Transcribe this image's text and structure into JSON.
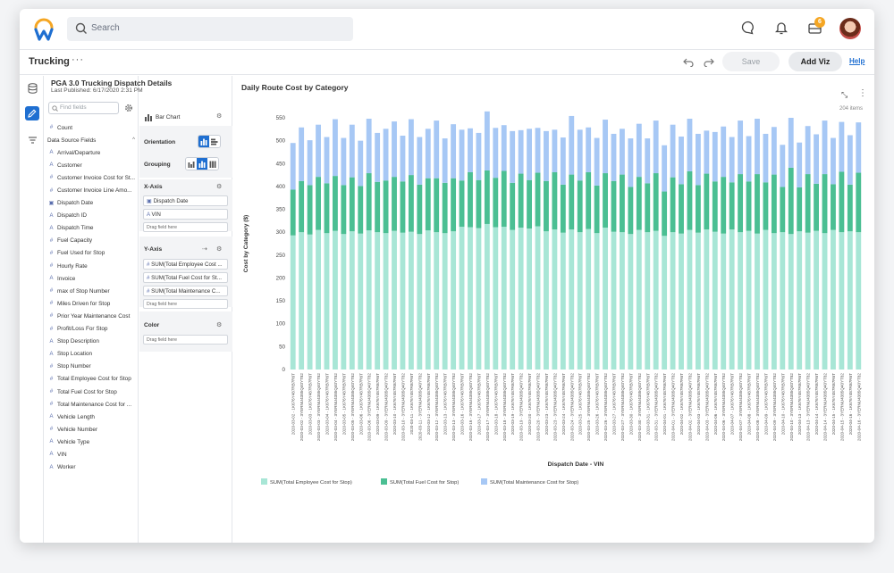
{
  "app": {
    "search_placeholder": "Search",
    "notification_count": "6"
  },
  "header": {
    "title": "Trucking",
    "more": "···",
    "save_label": "Save",
    "add_viz_label": "Add Viz",
    "help_label": "Help"
  },
  "datasource": {
    "title": "PGA 3.0 Trucking Dispatch Details",
    "last_published": "Last Published: 6/17/2020 2:31 PM",
    "find_placeholder": "Find fields",
    "count_label": "Count",
    "section_label": "Data Source Fields",
    "fields": [
      {
        "icon": "A",
        "label": "Arrival/Departure"
      },
      {
        "icon": "A",
        "label": "Customer"
      },
      {
        "icon": "#",
        "label": "Customer Invoice Cost for St..."
      },
      {
        "icon": "#",
        "label": "Customer Invoice Line Amo..."
      },
      {
        "icon": "D",
        "label": "Dispatch Date"
      },
      {
        "icon": "A",
        "label": "Dispatch ID"
      },
      {
        "icon": "A",
        "label": "Dispatch Time"
      },
      {
        "icon": "#",
        "label": "Fuel Capacity"
      },
      {
        "icon": "#",
        "label": "Fuel Used for Stop"
      },
      {
        "icon": "#",
        "label": "Hourly Rate"
      },
      {
        "icon": "A",
        "label": "Invoice"
      },
      {
        "icon": "#",
        "label": "max of Stop Number"
      },
      {
        "icon": "#",
        "label": "Miles Driven for Stop"
      },
      {
        "icon": "#",
        "label": "Prior Year Maintenance Cost"
      },
      {
        "icon": "#",
        "label": "Profit/Loss For Stop"
      },
      {
        "icon": "A",
        "label": "Stop Description"
      },
      {
        "icon": "A",
        "label": "Stop Location"
      },
      {
        "icon": "#",
        "label": "Stop Number"
      },
      {
        "icon": "#",
        "label": "Total Employee Cost for Stop"
      },
      {
        "icon": "#",
        "label": "Total Fuel Cost for Stop"
      },
      {
        "icon": "#",
        "label": "Total Maintenance Cost for ..."
      },
      {
        "icon": "A",
        "label": "Vehicle Length"
      },
      {
        "icon": "#",
        "label": "Vehicle Number"
      },
      {
        "icon": "A",
        "label": "Vehicle Type"
      },
      {
        "icon": "A",
        "label": "VIN"
      },
      {
        "icon": "A",
        "label": "Worker"
      }
    ]
  },
  "config": {
    "chart_type": "Bar Chart",
    "orientation_label": "Orientation",
    "grouping_label": "Grouping",
    "xaxis_label": "X-Axis",
    "x_fields": [
      "Dispatch Date",
      "VIN"
    ],
    "drag_here": "Drag field here",
    "yaxis_label": "Y-Axis",
    "y_fields": [
      "SUM(Total Employee Cost ...",
      "SUM(Total Fuel Cost for St...",
      "SUM(Total Maintenance C..."
    ],
    "color_label": "Color"
  },
  "chart_data": {
    "type": "bar",
    "title": "Daily Route Cost by Category",
    "count_label": "204 items",
    "xlabel": "Dispatch Date - VIN",
    "ylabel": "Cost by Category ($)",
    "ylim": [
      0,
      550
    ],
    "yticks": [
      0,
      50,
      100,
      150,
      200,
      250,
      300,
      350,
      400,
      450,
      500,
      550
    ],
    "stacked": true,
    "grid": false,
    "legend_position": "bottom-left",
    "colors": [
      "#a8e6d6",
      "#4bbf93",
      "#a7c8f5"
    ],
    "categories": [
      "2020-03-02 - 1K676Y487RB7R6T",
      "2020-03-02 - 3YERNU4385Q40YT82",
      "2020-03-03 - 1K676Y487RB7R6T",
      "2020-03-03 - 3YERNU4385Q40YT82",
      "2020-03-04 - 1K676Y487RB7R6T",
      "2020-03-04 - 3YERNU4385Q40YT82",
      "2020-03-05 - 1K676Y487RB7R6T",
      "2020-03-05 - 3YERNU4385Q40YT82",
      "2020-03-06 - 1K676Y487RB7R6T",
      "2020-03-06 - 3YERNU4385Q40YT82",
      "2020-03-09 - 1K676Y487RB7R6T",
      "2020-03-09 - 3YERNU4385Q40YT82",
      "2020-03-10 - 1K676Y487RB7R6T",
      "2020-03-10 - 3YERNU4385Q40YT82",
      "2020-03-11 - 1K676Y487RB7R6T",
      "2020-03-11 - 3YERNU4385Q40YT82",
      "2020-03-12 - 1K676Y487RB7R6T",
      "2020-03-12 - 3YERNU4385Q40YT82",
      "2020-03-13 - 1K676Y487RB7R6T",
      "2020-03-13 - 3YERNU4385Q40YT82",
      "2020-03-16 - 1K676Y487RB7R6T",
      "2020-03-16 - 3YERNU4385Q40YT82",
      "2020-03-17 - 1K676Y487RB7R6T",
      "2020-03-17 - 3YERNU4385Q40YT82",
      "2020-03-18 - 1K676Y487RB7R6T",
      "2020-03-18 - 3YERNU4385Q40YT82",
      "2020-03-19 - 1K676Y487RB7R6T",
      "2020-03-19 - 3YERNU4385Q40YT82",
      "2020-03-20 - 1K676Y487RB7R6T",
      "2020-03-20 - 3YERNU4385Q40YT82",
      "2020-03-23 - 1K676Y487RB7R6T",
      "2020-03-23 - 3YERNU4385Q40YT82",
      "2020-03-24 - 1K676Y487RB7R6T",
      "2020-03-24 - 3YERNU4385Q40YT82",
      "2020-03-25 - 1K676Y487RB7R6T",
      "2020-03-25 - 3YERNU4385Q40YT82",
      "2020-03-26 - 1K676Y487RB7R6T",
      "2020-03-26 - 3YERNU4385Q40YT82",
      "2020-03-27 - 1K676Y487RB7R6T",
      "2020-03-27 - 3YERNU4385Q40YT82",
      "2020-03-30 - 1K676Y487RB7R6T",
      "2020-03-30 - 3YERNU4385Q40YT82",
      "2020-03-31 - 1K676Y487RB7R6T",
      "2020-03-31 - 3YERNU4385Q40YT82",
      "2020-04-01 - 1K676Y487RB7R6T",
      "2020-04-01 - 3YERNU4385Q40YT82",
      "2020-04-02 - 1K676Y487RB7R6T",
      "2020-04-02 - 3YERNU4385Q40YT82",
      "2020-04-03 - 1K676Y487RB7R6T",
      "2020-04-03 - 3YERNU4385Q40YT82",
      "2020-04-06 - 1K676Y487RB7R6T",
      "2020-04-06 - 3YERNU4385Q40YT82",
      "2020-04-07 - 1K676Y487RB7R6T",
      "2020-04-07 - 3YERNU4385Q40YT82",
      "2020-04-08 - 1K676Y487RB7R6T",
      "2020-04-08 - 3YERNU4385Q40YT82",
      "2020-04-09 - 1K676Y487RB7R6T",
      "2020-04-09 - 3YERNU4385Q40YT82",
      "2020-04-10 - 1K676Y487RB7R6T",
      "2020-04-10 - 3YERNU4385Q40YT82",
      "2020-04-13 - 1K676Y487RB7R6T",
      "2020-04-13 - 3YERNU4385Q40YT82",
      "2020-04-14 - 1K676Y487RB7R6T",
      "2020-04-14 - 3YERNU4385Q40YT82",
      "2020-04-15 - 1K676Y487RB7R6T",
      "2020-04-15 - 3YERNU4385Q40YT82",
      "2020-04-16 - 1K676Y487RB7R6T",
      "2020-04-16 - 3YERNU4385Q40YT82"
    ],
    "series": [
      {
        "name": "SUM(Total Employee Cost for Stop)",
        "values": [
          293,
          300,
          295,
          305,
          298,
          303,
          296,
          302,
          297,
          304,
          300,
          298,
          303,
          299,
          301,
          296,
          304,
          300,
          298,
          302,
          312,
          311,
          309,
          318,
          311,
          312,
          305,
          310,
          308,
          313,
          302,
          306,
          299,
          306,
          300,
          307,
          298,
          310,
          301,
          300,
          296,
          305,
          300,
          303,
          292,
          300,
          297,
          305,
          299,
          306,
          301,
          297,
          306,
          300,
          303,
          297,
          305,
          298,
          300,
          296,
          302,
          299,
          303,
          298,
          305,
          300,
          302,
          300
        ]
      },
      {
        "name": "SUM(Total Fuel Cost for Stop)",
        "values": [
          100,
          112,
          108,
          116,
          109,
          120,
          107,
          118,
          104,
          125,
          110,
          115,
          118,
          112,
          124,
          108,
          114,
          118,
          110,
          116,
          101,
          120,
          105,
          117,
          108,
          122,
          103,
          118,
          106,
          117,
          110,
          125,
          105,
          120,
          113,
          124,
          104,
          119,
          111,
          126,
          103,
          116,
          107,
          126,
          97,
          120,
          108,
          128,
          104,
          122,
          110,
          124,
          103,
          127,
          108,
          130,
          104,
          128,
          99,
          145,
          96,
          128,
          103,
          129,
          100,
          132,
          102,
          130
        ]
      },
      {
        "name": "SUM(Total Maintenance Cost for Stop)",
        "values": [
          102,
          117,
          98,
          114,
          101,
          124,
          103,
          115,
          99,
          119,
          107,
          113,
          121,
          100,
          122,
          104,
          108,
          126,
          97,
          118,
          111,
          96,
          103,
          129,
          109,
          100,
          113,
          95,
          112,
          98,
          109,
          93,
          103,
          128,
          111,
          98,
          104,
          117,
          103,
          100,
          106,
          116,
          98,
          115,
          101,
          115,
          104,
          115,
          112,
          94,
          108,
          110,
          99,
          117,
          99,
          121,
          106,
          104,
          92,
          109,
          98,
          105,
          108,
          117,
          101,
          109,
          108,
          110
        ]
      }
    ]
  }
}
